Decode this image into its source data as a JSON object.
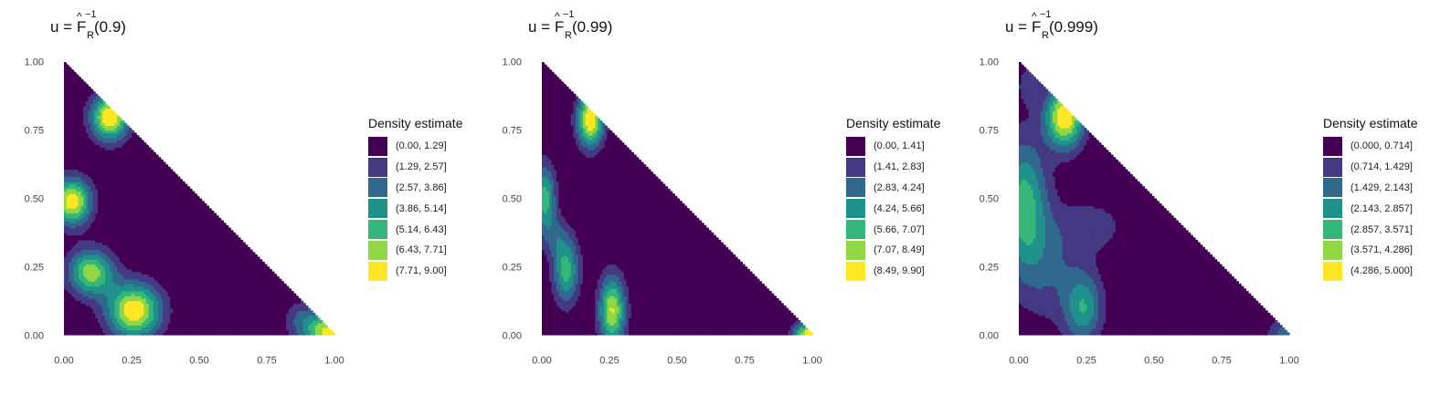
{
  "colors": {
    "palette": [
      "#440154",
      "#443983",
      "#31688e",
      "#21918c",
      "#35b779",
      "#8fd744",
      "#fde725"
    ],
    "background": "#ffffff"
  },
  "chart_data": [
    {
      "type": "heatmap",
      "title": {
        "prefix": "u = ",
        "F": "F",
        "hat": "^",
        "sup": "−1",
        "sub": "R",
        "arg": "(0.9)"
      },
      "xlim": [
        0,
        1
      ],
      "ylim": [
        0,
        1
      ],
      "x_ticks": [
        "0.00",
        "0.25",
        "0.50",
        "0.75",
        "1.00"
      ],
      "y_ticks": [
        "0.00",
        "0.25",
        "0.50",
        "0.75",
        "1.00"
      ],
      "legend": {
        "title": "Density estimate",
        "position": "right",
        "bins": [
          "(0.00, 1.29]",
          "(1.29, 2.57]",
          "(2.57, 3.86]",
          "(3.86, 5.14]",
          "(5.14, 6.43]",
          "(6.43, 7.71]",
          "(7.71, 9.00]"
        ]
      },
      "density_range": [
        0,
        9.0
      ],
      "peaks": [
        {
          "x": 0.17,
          "y": 0.8,
          "sx": 0.05,
          "sy": 0.06,
          "value": 9.0
        },
        {
          "x": 0.03,
          "y": 0.49,
          "sx": 0.05,
          "sy": 0.06,
          "value": 8.7
        },
        {
          "x": 0.1,
          "y": 0.23,
          "sx": 0.06,
          "sy": 0.06,
          "value": 7.2
        },
        {
          "x": 0.26,
          "y": 0.09,
          "sx": 0.07,
          "sy": 0.07,
          "value": 8.9
        },
        {
          "x": 0.98,
          "y": 0.01,
          "sx": 0.06,
          "sy": 0.05,
          "value": 8.0
        },
        {
          "x": 0.88,
          "y": 0.06,
          "sx": 0.05,
          "sy": 0.05,
          "value": 2.4
        }
      ]
    },
    {
      "type": "heatmap",
      "title": {
        "prefix": "u = ",
        "F": "F",
        "hat": "^",
        "sup": "−1",
        "sub": "R",
        "arg": "(0.99)"
      },
      "xlim": [
        0,
        1
      ],
      "ylim": [
        0,
        1
      ],
      "x_ticks": [
        "0.00",
        "0.25",
        "0.50",
        "0.75",
        "1.00"
      ],
      "y_ticks": [
        "0.00",
        "0.25",
        "0.50",
        "0.75",
        "1.00"
      ],
      "legend": {
        "title": "Density estimate",
        "position": "right",
        "bins": [
          "(0.00, 1.41]",
          "(1.41, 2.83]",
          "(2.83, 4.24]",
          "(4.24, 5.66]",
          "(5.66, 7.07]",
          "(7.07, 8.49]",
          "(8.49, 9.90]"
        ]
      },
      "density_range": [
        0,
        9.9
      ],
      "peaks": [
        {
          "x": 0.18,
          "y": 0.79,
          "sx": 0.035,
          "sy": 0.07,
          "value": 9.9
        },
        {
          "x": 0.01,
          "y": 0.5,
          "sx": 0.03,
          "sy": 0.09,
          "value": 6.5
        },
        {
          "x": 0.09,
          "y": 0.24,
          "sx": 0.035,
          "sy": 0.09,
          "value": 6.3
        },
        {
          "x": 0.26,
          "y": 0.09,
          "sx": 0.035,
          "sy": 0.09,
          "value": 8.6
        },
        {
          "x": 0.99,
          "y": 0.005,
          "sx": 0.04,
          "sy": 0.03,
          "value": 9.5
        },
        {
          "x": 0.05,
          "y": 0.36,
          "sx": 0.03,
          "sy": 0.05,
          "value": 2.0
        }
      ]
    },
    {
      "type": "heatmap",
      "title": {
        "prefix": "u = ",
        "F": "F",
        "hat": "^",
        "sup": "−1",
        "sub": "R",
        "arg": "(0.999)"
      },
      "xlim": [
        0,
        1
      ],
      "ylim": [
        0,
        1
      ],
      "x_ticks": [
        "0.00",
        "0.25",
        "0.50",
        "0.75",
        "1.00"
      ],
      "y_ticks": [
        "0.00",
        "0.25",
        "0.50",
        "0.75",
        "1.00"
      ],
      "legend": {
        "title": "Density estimate",
        "position": "right",
        "bins": [
          "(0.000, 0.714]",
          "(0.714, 1.429]",
          "(1.429, 2.143]",
          "(2.143, 2.857]",
          "(2.857, 3.571]",
          "(3.571, 4.286]",
          "(4.286, 5.000]"
        ]
      },
      "density_range": [
        0,
        5.0
      ],
      "peaks": [
        {
          "x": 0.17,
          "y": 0.8,
          "sx": 0.05,
          "sy": 0.08,
          "value": 5.0
        },
        {
          "x": 0.02,
          "y": 0.48,
          "sx": 0.06,
          "sy": 0.17,
          "value": 3.2
        },
        {
          "x": 0.24,
          "y": 0.1,
          "sx": 0.05,
          "sy": 0.09,
          "value": 2.6
        },
        {
          "x": 0.12,
          "y": 0.25,
          "sx": 0.09,
          "sy": 0.15,
          "value": 1.3
        },
        {
          "x": 0.28,
          "y": 0.4,
          "sx": 0.09,
          "sy": 0.07,
          "value": 1.0
        },
        {
          "x": 0.04,
          "y": 0.92,
          "sx": 0.03,
          "sy": 0.05,
          "value": 1.2
        },
        {
          "x": 0.99,
          "y": 0.005,
          "sx": 0.05,
          "sy": 0.04,
          "value": 1.8
        }
      ]
    }
  ]
}
